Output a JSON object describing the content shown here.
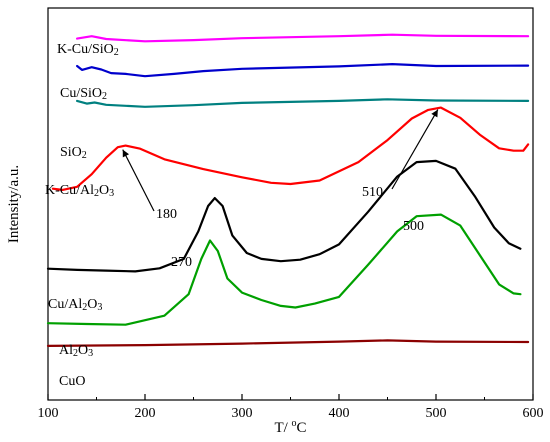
{
  "chart_data": {
    "type": "line",
    "xlabel": "T/ °C",
    "ylabel": "Intensity/a.u.",
    "xlim": [
      100,
      600
    ],
    "x_ticks": [
      "100",
      "200",
      "300",
      "400",
      "500",
      "600"
    ],
    "y_ticks_labeled": false,
    "ylim": [
      0,
      100
    ],
    "grid": false,
    "legend": "none (series labelled directly above each curve)",
    "series": [
      {
        "name": "K-Cu/SiO2",
        "color": "#ff00ff",
        "points": [
          [
            130,
            92.2
          ],
          [
            145,
            92.8
          ],
          [
            160,
            92.1
          ],
          [
            200,
            91.5
          ],
          [
            250,
            91.8
          ],
          [
            300,
            92.3
          ],
          [
            400,
            92.8
          ],
          [
            455,
            93.2
          ],
          [
            500,
            92.9
          ],
          [
            595,
            92.8
          ]
        ]
      },
      {
        "name": "Cu/SiO2",
        "color": "#0000cc",
        "points": [
          [
            130,
            85.2
          ],
          [
            135,
            84.2
          ],
          [
            145,
            84.9
          ],
          [
            155,
            84.3
          ],
          [
            165,
            83.4
          ],
          [
            180,
            83.2
          ],
          [
            200,
            82.6
          ],
          [
            230,
            83.2
          ],
          [
            260,
            83.9
          ],
          [
            300,
            84.5
          ],
          [
            400,
            85.1
          ],
          [
            455,
            85.7
          ],
          [
            500,
            85.2
          ],
          [
            595,
            85.3
          ]
        ]
      },
      {
        "name": "SiO2",
        "color": "#008080",
        "points": [
          [
            130,
            76.3
          ],
          [
            140,
            75.6
          ],
          [
            148,
            75.9
          ],
          [
            160,
            75.3
          ],
          [
            200,
            74.8
          ],
          [
            250,
            75.2
          ],
          [
            300,
            75.8
          ],
          [
            400,
            76.3
          ],
          [
            450,
            76.7
          ],
          [
            500,
            76.4
          ],
          [
            595,
            76.3
          ]
        ]
      },
      {
        "name": "K-Cu/Al2O3",
        "color": "#ff0000",
        "points": [
          [
            105,
            53.9
          ],
          [
            115,
            53.6
          ],
          [
            130,
            54.4
          ],
          [
            145,
            57.6
          ],
          [
            160,
            61.8
          ],
          [
            172,
            64.5
          ],
          [
            180,
            64.9
          ],
          [
            195,
            64.1
          ],
          [
            220,
            61.4
          ],
          [
            260,
            58.9
          ],
          [
            300,
            56.8
          ],
          [
            330,
            55.4
          ],
          [
            350,
            55.1
          ],
          [
            380,
            56.0
          ],
          [
            420,
            60.7
          ],
          [
            450,
            66.3
          ],
          [
            475,
            71.8
          ],
          [
            492,
            74.0
          ],
          [
            505,
            74.6
          ],
          [
            525,
            72.0
          ],
          [
            545,
            67.7
          ],
          [
            565,
            64.2
          ],
          [
            580,
            63.6
          ],
          [
            590,
            63.6
          ],
          [
            595,
            65.2
          ]
        ]
      },
      {
        "name": "Cu/Al2O3",
        "color": "#000000",
        "points": [
          [
            100,
            33.5
          ],
          [
            130,
            33.2
          ],
          [
            160,
            33.0
          ],
          [
            190,
            32.8
          ],
          [
            215,
            33.6
          ],
          [
            240,
            36.0
          ],
          [
            255,
            43.0
          ],
          [
            265,
            49.5
          ],
          [
            272,
            51.5
          ],
          [
            280,
            49.5
          ],
          [
            290,
            42.0
          ],
          [
            305,
            37.5
          ],
          [
            320,
            36.0
          ],
          [
            340,
            35.4
          ],
          [
            360,
            35.8
          ],
          [
            380,
            37.2
          ],
          [
            400,
            39.7
          ],
          [
            430,
            48.0
          ],
          [
            460,
            57.0
          ],
          [
            480,
            60.7
          ],
          [
            500,
            61.0
          ],
          [
            520,
            59.0
          ],
          [
            540,
            52.0
          ],
          [
            560,
            44.0
          ],
          [
            575,
            40.0
          ],
          [
            587,
            38.6
          ]
        ]
      },
      {
        "name": "Al2O3",
        "color": "#00a000",
        "points": [
          [
            100,
            19.6
          ],
          [
            140,
            19.4
          ],
          [
            180,
            19.2
          ],
          [
            220,
            21.5
          ],
          [
            245,
            27.0
          ],
          [
            258,
            36.0
          ],
          [
            267,
            40.7
          ],
          [
            275,
            38.0
          ],
          [
            285,
            31.0
          ],
          [
            300,
            27.4
          ],
          [
            320,
            25.5
          ],
          [
            340,
            24.0
          ],
          [
            355,
            23.6
          ],
          [
            375,
            24.6
          ],
          [
            400,
            26.3
          ],
          [
            430,
            34.5
          ],
          [
            460,
            43.0
          ],
          [
            480,
            46.9
          ],
          [
            505,
            47.3
          ],
          [
            525,
            44.5
          ],
          [
            545,
            37.0
          ],
          [
            565,
            29.5
          ],
          [
            580,
            27.2
          ],
          [
            587,
            27.0
          ]
        ]
      },
      {
        "name": "CuO",
        "color": "#8b0000",
        "points": [
          [
            100,
            13.8
          ],
          [
            150,
            13.9
          ],
          [
            200,
            14.0
          ],
          [
            300,
            14.4
          ],
          [
            400,
            14.9
          ],
          [
            450,
            15.2
          ],
          [
            500,
            14.9
          ],
          [
            595,
            14.8
          ]
        ]
      }
    ],
    "annotations": [
      {
        "text": "180",
        "x": 175,
        "y": 64.9,
        "arrow": true
      },
      {
        "text": "270",
        "x": 272,
        "y": 51.5,
        "arrow": false
      },
      {
        "text": "500",
        "x": 500,
        "y": 61.0,
        "arrow": false
      },
      {
        "text": "510",
        "x": 505,
        "y": 74.6,
        "arrow": true
      }
    ]
  }
}
